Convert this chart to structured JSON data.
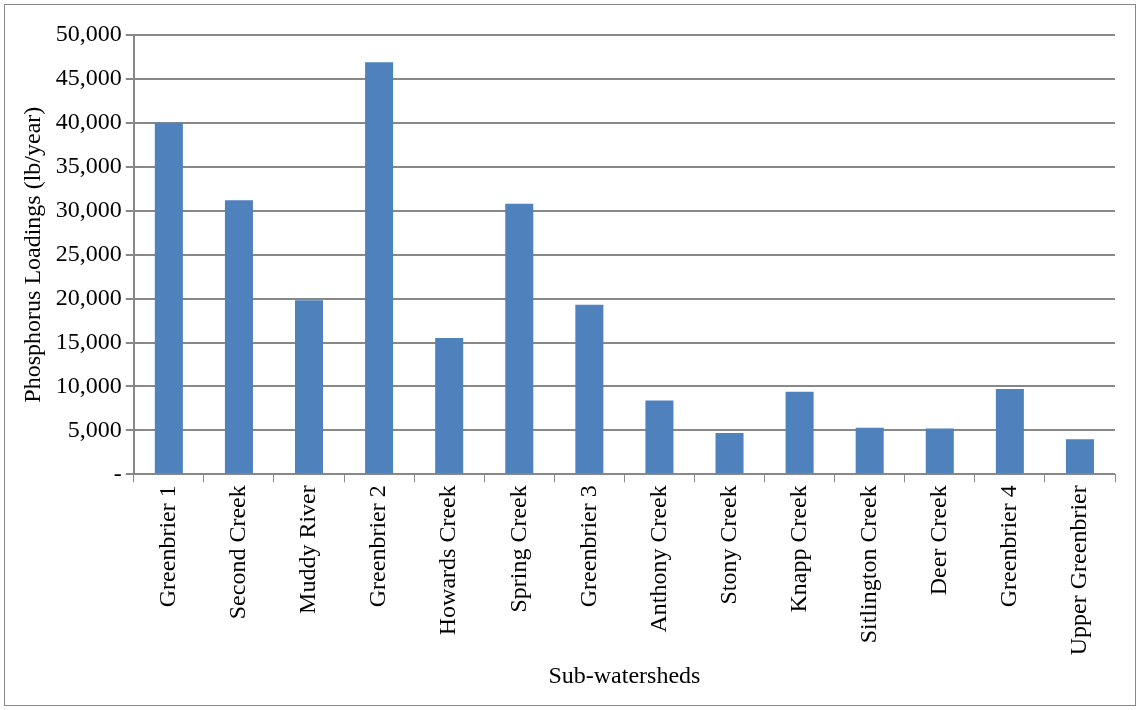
{
  "chart_data": {
    "type": "bar",
    "xlabel": "Sub-watersheds",
    "ylabel": "Phosphorus Loadings (lb/year)",
    "categories": [
      "Greenbrier 1",
      "Second Creek",
      "Muddy River",
      "Greenbrier 2",
      "Howards Creek",
      "Spring Creek",
      "Greenbrier 3",
      "Anthony Creek",
      "Stony Creek",
      "Knapp Creek",
      "Sitlington Creek",
      "Deer Creek",
      "Greenbrier 4",
      "Upper Greenbrier"
    ],
    "values": [
      40000,
      31200,
      19800,
      46900,
      15500,
      30800,
      19300,
      8400,
      4700,
      9400,
      5300,
      5200,
      9700,
      4000
    ],
    "color": "#4f81bd",
    "ylim": [
      0,
      50000
    ],
    "yticks": [
      {
        "value": 0,
        "label": "-"
      },
      {
        "value": 5000,
        "label": "5,000"
      },
      {
        "value": 10000,
        "label": "10,000"
      },
      {
        "value": 15000,
        "label": "15,000"
      },
      {
        "value": 20000,
        "label": "20,000"
      },
      {
        "value": 25000,
        "label": "25,000"
      },
      {
        "value": 30000,
        "label": "30,000"
      },
      {
        "value": 35000,
        "label": "35,000"
      },
      {
        "value": 40000,
        "label": "40,000"
      },
      {
        "value": 45000,
        "label": "45,000"
      },
      {
        "value": 50000,
        "label": "50,000"
      }
    ],
    "grid": "y",
    "legend": false
  }
}
